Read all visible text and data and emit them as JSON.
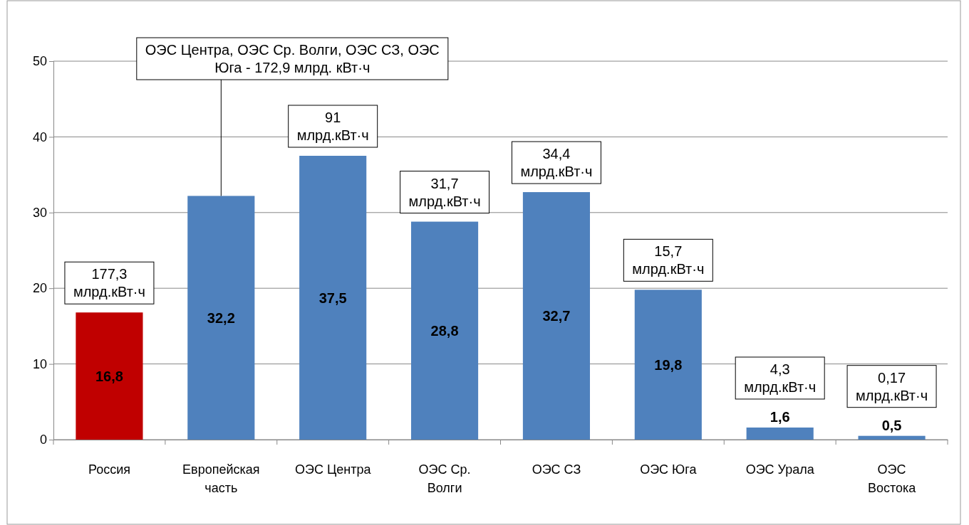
{
  "chart_data": {
    "type": "bar",
    "categories": [
      "Россия",
      "Европейская часть",
      "ОЭС Центра",
      "ОЭС Ср. Волги",
      "ОЭС СЗ",
      "ОЭС Юга",
      "ОЭС Урала",
      "ОЭС Востока"
    ],
    "values": [
      16.8,
      32.2,
      37.5,
      28.8,
      32.7,
      19.8,
      1.6,
      0.5
    ],
    "colors": [
      "#c00000",
      "#4f81bd",
      "#4f81bd",
      "#4f81bd",
      "#4f81bd",
      "#4f81bd",
      "#4f81bd",
      "#4f81bd"
    ],
    "ylim": [
      0,
      50
    ],
    "yticks": [
      0,
      10,
      20,
      30,
      40,
      50
    ],
    "grid": "y",
    "value_labels": [
      "16,8",
      "32,2",
      "37,5",
      "28,8",
      "32,7",
      "19,8",
      "1,6",
      "0,5"
    ],
    "annotations": [
      {
        "text": "177,3 млрд.кВт·ч",
        "x": "Россия",
        "y": 16.8
      },
      {
        "text": "ОЭС Центра, ОЭС Ср. Волги, ОЭС СЗ, ОЭС Юга - 172,9 млрд. кВт·ч",
        "x": "Европейская часть",
        "y": 32.2
      },
      {
        "text": "91 млрд.кВт·ч",
        "x": "ОЭС Центра",
        "y": 37.5
      },
      {
        "text": "31,7 млрд.кВт·ч",
        "x": "ОЭС Ср. Волги",
        "y": 28.8
      },
      {
        "text": "34,4 млрд.кВт·ч",
        "x": "ОЭС СЗ",
        "y": 32.7
      },
      {
        "text": "15,7 млрд.кВт·ч",
        "x": "ОЭС Юга",
        "y": 19.8
      },
      {
        "text": "4,3 млрд.кВт·ч",
        "x": "ОЭС Урала",
        "y": 1.6
      },
      {
        "text": "0,17 млрд.кВт·ч",
        "x": "ОЭС Востока",
        "y": 0.5
      }
    ]
  }
}
